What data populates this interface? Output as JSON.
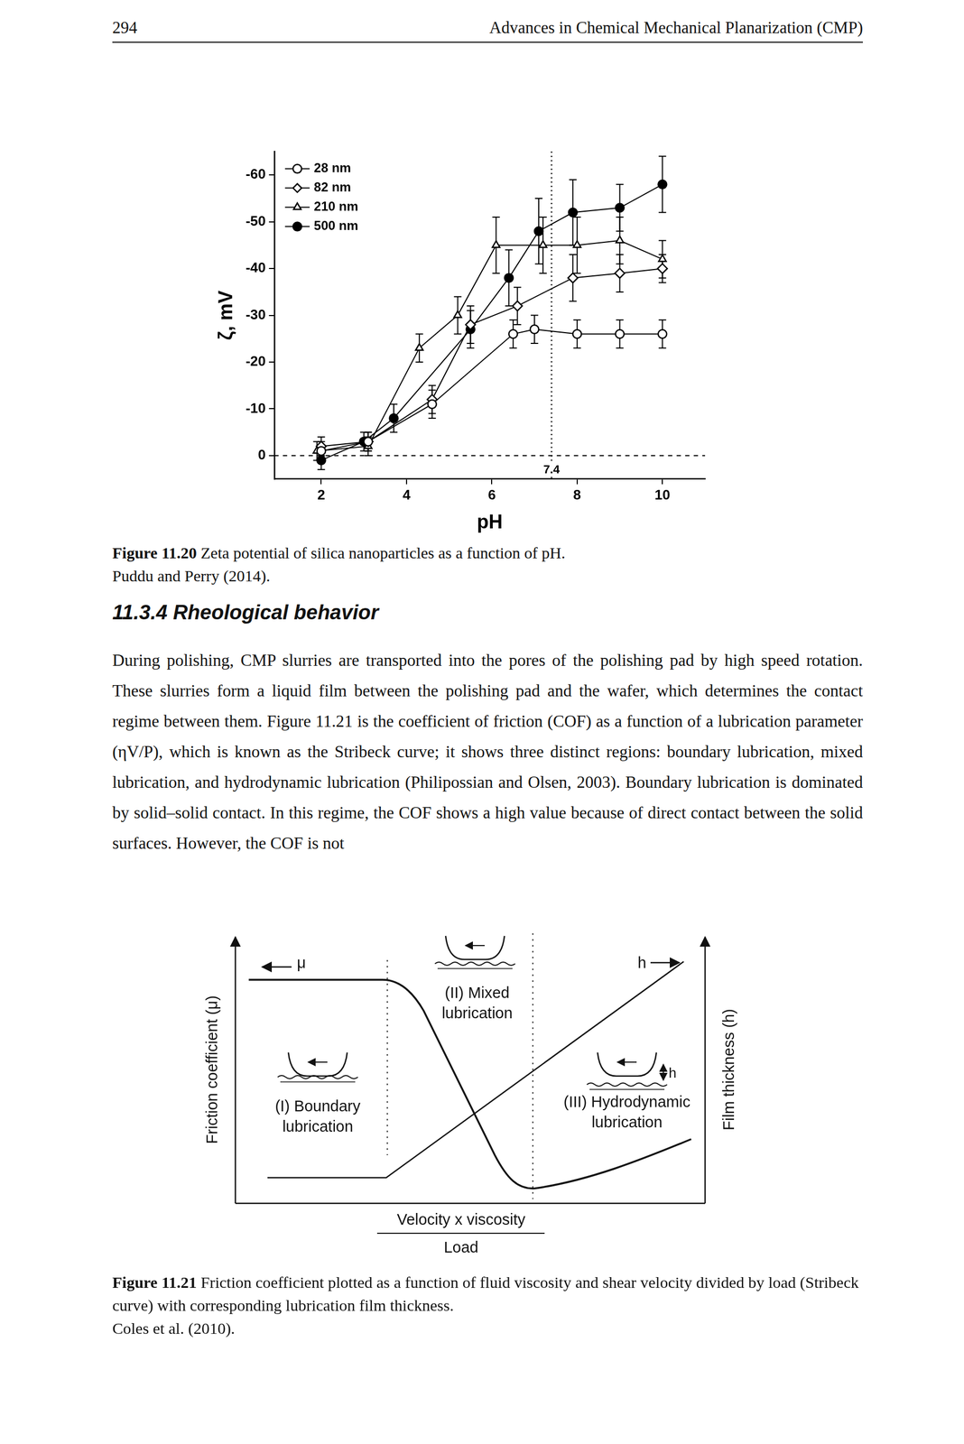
{
  "header": {
    "page_number": "294",
    "running_title": "Advances in Chemical Mechanical Planarization (CMP)"
  },
  "chart_data": {
    "type": "line",
    "x_label": "pH",
    "y_label": "ζ, mV",
    "xlim": [
      0.9,
      11
    ],
    "xticks": [
      2,
      4,
      6,
      8,
      10
    ],
    "ylim": [
      5,
      -65
    ],
    "yticks": [
      0,
      -10,
      -20,
      -30,
      -40,
      -50,
      -60
    ],
    "grid": false,
    "legend": "top-left",
    "annotations": [
      {
        "type": "vline",
        "x": 7.4,
        "label": "7.4"
      },
      {
        "type": "hline",
        "y": 0
      }
    ],
    "series": [
      {
        "name": "28 nm",
        "color": "#000000",
        "marker": "circle_open",
        "line_style": "solid",
        "x": [
          2,
          3.1,
          4.6,
          6.5,
          7,
          8,
          9,
          10
        ],
        "values": [
          -1,
          -3,
          -11,
          -26,
          -27,
          -26,
          -26,
          -26
        ],
        "errors": [
          2,
          2,
          3,
          3,
          3,
          3,
          3,
          3
        ]
      },
      {
        "name": "82 nm",
        "color": "#000000",
        "marker": "diamond_open",
        "line_style": "solid",
        "x": [
          2,
          3.1,
          4.6,
          5.5,
          6.6,
          7.9,
          9,
          10
        ],
        "values": [
          -2,
          -3,
          -12,
          -28,
          -32,
          -38,
          -39,
          -40
        ],
        "errors": [
          2,
          2,
          3,
          4,
          4,
          5,
          4,
          3
        ]
      },
      {
        "name": "210 nm",
        "color": "#000000",
        "marker": "triangle_open",
        "line_style": "solid",
        "x": [
          1.9,
          3.1,
          4.3,
          5.2,
          6.1,
          7.2,
          8,
          9,
          10
        ],
        "values": [
          -1,
          -2,
          -23,
          -30,
          -45,
          -45,
          -45,
          -46,
          -42
        ],
        "errors": [
          2,
          2,
          3,
          4,
          6,
          6,
          6,
          5,
          4
        ]
      },
      {
        "name": "500 nm",
        "color": "#000000",
        "marker": "circle",
        "line_style": "solid",
        "x": [
          2,
          3,
          3.7,
          5.5,
          6.4,
          7.1,
          7.9,
          9,
          10
        ],
        "values": [
          1,
          -3,
          -8,
          -27,
          -38,
          -48,
          -52,
          -53,
          -58
        ],
        "errors": [
          2,
          2,
          3,
          4,
          6,
          7,
          7,
          5,
          6
        ]
      }
    ]
  },
  "figures": [
    {
      "label": "Figure 11.20",
      "caption": "Zeta potential of silica nanoparticles as a function of pH.",
      "source": "Puddu and Perry (2014)."
    },
    {
      "label": "Figure 11.21",
      "caption": "Friction coefficient plotted as a function of fluid viscosity and shear velocity divided by load (Stribeck curve) with corresponding lubrication film thickness.",
      "source": "Coles et al. (2010)."
    }
  ],
  "section": {
    "number": "11.3.4",
    "title": "Rheological behavior"
  },
  "body": "During polishing, CMP slurries are transported into the pores of the polishing pad by high speed rotation. These slurries form a liquid film between the polishing pad and the wafer, which determines the contact regime between them. Figure 11.21 is the coefficient of friction (COF) as a function of a lubrication parameter (ηV/P), which is known as the Stribeck curve; it shows three distinct regions: boundary lubrication, mixed lubrication, and hydrodynamic lubrication (Philipossian and Olsen, 2003). Boundary lubrication is dominated by solid–solid contact. In this regime, the COF shows a high value because of direct contact between the solid surfaces. However, the COF is not",
  "diagram": {
    "y_label": "Friction coefficient (μ)",
    "y2_label": "Film thickness (h)",
    "x_label_numerator": "Velocity x viscosity",
    "x_label_denominator": "Load",
    "friction_curve_label": "μ",
    "film_curve_label": "h",
    "gap_label": "h",
    "regions": [
      {
        "lines": [
          "(I) Boundary",
          "lubrication"
        ]
      },
      {
        "lines": [
          "(II) Mixed",
          "lubrication"
        ]
      },
      {
        "lines": [
          "(III) Hydrodynamic",
          "lubrication"
        ]
      }
    ]
  }
}
